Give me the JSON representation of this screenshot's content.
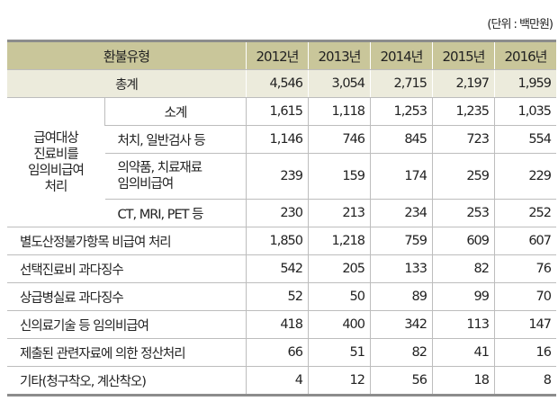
{
  "unit": "(단위 : 백만원)",
  "header": {
    "label": "환불유형",
    "years": [
      "2012년",
      "2013년",
      "2014년",
      "2015년",
      "2016년"
    ]
  },
  "total": {
    "label": "총계",
    "values": [
      "4,546",
      "3,054",
      "2,715",
      "2,197",
      "1,959"
    ]
  },
  "group": {
    "label_lines": [
      "급여대상",
      "진료비를",
      "임의비급여",
      "처리"
    ],
    "rows": [
      {
        "label": "소계",
        "values": [
          "1,615",
          "1,118",
          "1,253",
          "1,235",
          "1,035"
        ]
      },
      {
        "label": "처치, 일반검사 등",
        "values": [
          "1,146",
          "746",
          "845",
          "723",
          "554"
        ]
      },
      {
        "label_lines": [
          "의약품, 치료재료",
          "임의비급여"
        ],
        "values": [
          "239",
          "159",
          "174",
          "259",
          "229"
        ]
      },
      {
        "label": "CT, MRI, PET 등",
        "values": [
          "230",
          "213",
          "234",
          "253",
          "252"
        ]
      }
    ]
  },
  "rows": [
    {
      "label": "별도산정불가항목 비급여 처리",
      "values": [
        "1,850",
        "1,218",
        "759",
        "609",
        "607"
      ]
    },
    {
      "label": "선택진료비 과다징수",
      "values": [
        "542",
        "205",
        "133",
        "82",
        "76"
      ]
    },
    {
      "label": "상급병실료 과다징수",
      "values": [
        "52",
        "50",
        "89",
        "99",
        "70"
      ]
    },
    {
      "label": "신의료기술 등 임의비급여",
      "values": [
        "418",
        "400",
        "342",
        "113",
        "147"
      ]
    },
    {
      "label": "제출된 관련자료에 의한 정산처리",
      "values": [
        "66",
        "51",
        "82",
        "41",
        "16"
      ]
    },
    {
      "label": "기타(청구착오, 계산착오)",
      "values": [
        "4",
        "12",
        "56",
        "18",
        "8"
      ]
    }
  ]
}
